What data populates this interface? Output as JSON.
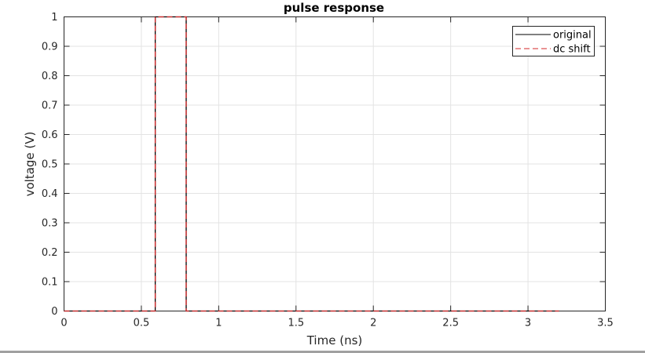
{
  "chart_data": {
    "type": "line",
    "title": "pulse response",
    "xlabel": "Time (ns)",
    "ylabel": "voltage (V)",
    "xlim": [
      0,
      3.5
    ],
    "ylim": [
      0,
      1
    ],
    "xticks": [
      0,
      0.5,
      1,
      1.5,
      2,
      2.5,
      3,
      3.5
    ],
    "xtick_labels": [
      "0",
      "0.5",
      "1",
      "1.5",
      "2",
      "2.5",
      "3",
      "3.5"
    ],
    "yticks": [
      0,
      0.1,
      0.2,
      0.3,
      0.4,
      0.5,
      0.6,
      0.7,
      0.8,
      0.9,
      1
    ],
    "ytick_labels": [
      "0",
      "0.1",
      "0.2",
      "0.3",
      "0.4",
      "0.5",
      "0.6",
      "0.7",
      "0.8",
      "0.9",
      "1"
    ],
    "grid": true,
    "legend_position": "top-right",
    "series": [
      {
        "name": "original",
        "color": "#000000",
        "style": "solid",
        "x": [
          0,
          0.59,
          0.59,
          0.79,
          0.79,
          3.2
        ],
        "y": [
          0,
          0,
          1,
          1,
          0,
          0
        ]
      },
      {
        "name": "dc shift",
        "color": "#d62728",
        "style": "dashed",
        "x": [
          0,
          0.59,
          0.59,
          0.79,
          0.79,
          3.2
        ],
        "y": [
          0,
          0,
          1,
          1,
          0,
          0
        ]
      }
    ]
  }
}
